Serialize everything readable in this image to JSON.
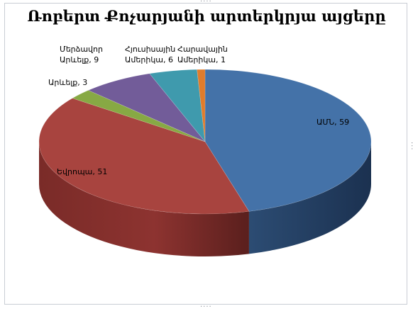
{
  "chart_data": {
    "type": "pie",
    "title": "Ռոբերտ Քոչարյանի արտերկրյա այցերը",
    "slices": [
      {
        "label": "ԱՄՆ",
        "value": 59,
        "color": "#4472a8"
      },
      {
        "label": "Եվրոպա",
        "value": 51,
        "color": "#a8443f"
      },
      {
        "label": "Արևելք",
        "value": 3,
        "color": "#87a944"
      },
      {
        "label": "Մերձավոր Արևելք",
        "value": 9,
        "color": "#725c99"
      },
      {
        "label": "Հյուսիսային Ամերիկա",
        "value": 6,
        "color": "#3f9aad"
      },
      {
        "label": "Հարավային Ամերիկա",
        "value": 1,
        "color": "#e07c2c"
      }
    ],
    "data_labels": [
      [
        "ԱՄՆ, 59"
      ],
      [
        "Եվրոպա, 51"
      ],
      [
        "Արևելք, 3"
      ],
      [
        "Մերձավոր",
        "Արևելք, 9"
      ],
      [
        "Հյուսիսային",
        "Ամերիկա, 6"
      ],
      [
        "Հարավային",
        "Ամերիկա, 1"
      ]
    ],
    "legend": "none",
    "style": "3d-pie"
  }
}
